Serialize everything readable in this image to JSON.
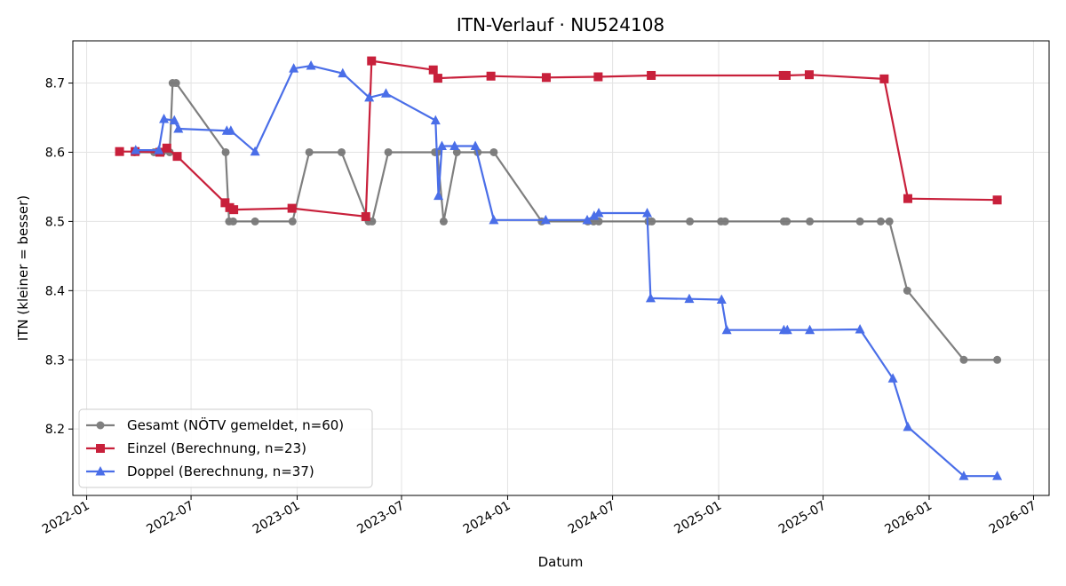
{
  "chart_data": {
    "type": "line",
    "title": "ITN-Verlauf · NU524108",
    "xlabel": "Datum",
    "ylabel": "ITN  (kleiner = besser)",
    "xlim": [
      "2021-12-08",
      "2026-07-28"
    ],
    "ylim": [
      8.104,
      8.761
    ],
    "x_ticks": [
      "2022-01-01",
      "2022-07-01",
      "2023-01-01",
      "2023-07-01",
      "2024-01-01",
      "2024-07-01",
      "2025-01-01",
      "2025-07-01",
      "2026-01-01",
      "2026-07-01"
    ],
    "x_tick_labels": [
      "2022-01",
      "2022-07",
      "2023-01",
      "2023-07",
      "2024-01",
      "2024-07",
      "2025-01",
      "2025-07",
      "2026-01",
      "2026-07"
    ],
    "y_ticks": [
      8.2,
      8.3,
      8.4,
      8.5,
      8.6,
      8.7
    ],
    "y_tick_labels": [
      "8.2",
      "8.3",
      "8.4",
      "8.5",
      "8.6",
      "8.7"
    ],
    "grid": true,
    "legend_position": "lower-left",
    "series": [
      {
        "name": "Gesamt (NÖTV gemeldet, n=60)",
        "color": "#555555",
        "marker": "circle",
        "points": [
          [
            "2022-03-25",
            8.6
          ],
          [
            "2022-04-28",
            8.6
          ],
          [
            "2022-05-07",
            8.6
          ],
          [
            "2022-05-12",
            8.6
          ],
          [
            "2022-05-25",
            8.6
          ],
          [
            "2022-05-30",
            8.7
          ],
          [
            "2022-06-05",
            8.7
          ],
          [
            "2022-08-30",
            8.6
          ],
          [
            "2022-09-05",
            8.5
          ],
          [
            "2022-09-12",
            8.5
          ],
          [
            "2022-10-20",
            8.5
          ],
          [
            "2022-12-24",
            8.5
          ],
          [
            "2023-01-22",
            8.6
          ],
          [
            "2023-03-19",
            8.6
          ],
          [
            "2023-05-05",
            8.5
          ],
          [
            "2023-05-11",
            8.5
          ],
          [
            "2023-06-08",
            8.6
          ],
          [
            "2023-08-28",
            8.6
          ],
          [
            "2023-09-01",
            8.6
          ],
          [
            "2023-09-12",
            8.5
          ],
          [
            "2023-10-05",
            8.6
          ],
          [
            "2023-11-10",
            8.6
          ],
          [
            "2023-12-08",
            8.6
          ],
          [
            "2024-02-29",
            8.5
          ],
          [
            "2024-05-19",
            8.5
          ],
          [
            "2024-05-29",
            8.5
          ],
          [
            "2024-06-07",
            8.5
          ],
          [
            "2024-09-01",
            8.5
          ],
          [
            "2024-09-07",
            8.5
          ],
          [
            "2024-11-12",
            8.5
          ],
          [
            "2025-01-05",
            8.5
          ],
          [
            "2025-01-12",
            8.5
          ],
          [
            "2025-04-24",
            8.5
          ],
          [
            "2025-04-29",
            8.5
          ],
          [
            "2025-06-08",
            8.5
          ],
          [
            "2025-09-03",
            8.5
          ],
          [
            "2025-10-09",
            8.5
          ],
          [
            "2025-10-24",
            8.5
          ],
          [
            "2025-11-24",
            8.4
          ],
          [
            "2026-03-02",
            8.3
          ],
          [
            "2026-04-29",
            8.3
          ]
        ]
      },
      {
        "name": "Einzel (Berechnung, n=23)",
        "color": "#c8203b",
        "marker": "square",
        "points": [
          [
            "2022-02-27",
            8.601
          ],
          [
            "2022-03-26",
            8.601
          ],
          [
            "2022-05-08",
            8.6
          ],
          [
            "2022-05-20",
            8.606
          ],
          [
            "2022-06-07",
            8.594
          ],
          [
            "2022-08-29",
            8.527
          ],
          [
            "2022-09-06",
            8.52
          ],
          [
            "2022-09-13",
            8.517
          ],
          [
            "2022-12-23",
            8.519
          ],
          [
            "2023-04-30",
            8.507
          ],
          [
            "2023-05-10",
            8.732
          ],
          [
            "2023-08-25",
            8.719
          ],
          [
            "2023-09-02",
            8.707
          ],
          [
            "2023-12-03",
            8.71
          ],
          [
            "2024-03-08",
            8.708
          ],
          [
            "2024-06-06",
            8.709
          ],
          [
            "2024-09-06",
            8.711
          ],
          [
            "2025-04-23",
            8.711
          ],
          [
            "2025-04-28",
            8.711
          ],
          [
            "2025-06-07",
            8.712
          ],
          [
            "2025-10-15",
            8.706
          ],
          [
            "2025-11-25",
            8.533
          ],
          [
            "2026-04-29",
            8.531
          ]
        ]
      },
      {
        "name": "Doppel (Berechnung, n=37)",
        "color": "#4a6ee8",
        "marker": "triangle",
        "points": [
          [
            "2022-03-27",
            8.603
          ],
          [
            "2022-05-06",
            8.603
          ],
          [
            "2022-05-15",
            8.648
          ],
          [
            "2022-06-02",
            8.646
          ],
          [
            "2022-06-09",
            8.634
          ],
          [
            "2022-09-01",
            8.631
          ],
          [
            "2022-09-08",
            8.631
          ],
          [
            "2022-10-20",
            8.601
          ],
          [
            "2022-12-26",
            8.721
          ],
          [
            "2023-01-25",
            8.725
          ],
          [
            "2023-03-21",
            8.714
          ],
          [
            "2023-05-06",
            8.679
          ],
          [
            "2023-06-04",
            8.685
          ],
          [
            "2023-08-29",
            8.646
          ],
          [
            "2023-09-03",
            8.537
          ],
          [
            "2023-09-09",
            8.609
          ],
          [
            "2023-10-01",
            8.609
          ],
          [
            "2023-11-06",
            8.609
          ],
          [
            "2023-12-08",
            8.502
          ],
          [
            "2024-03-07",
            8.502
          ],
          [
            "2024-05-18",
            8.502
          ],
          [
            "2024-05-30",
            8.508
          ],
          [
            "2024-06-07",
            8.512
          ],
          [
            "2024-08-30",
            8.512
          ],
          [
            "2024-09-05",
            8.389
          ],
          [
            "2024-11-11",
            8.388
          ],
          [
            "2025-01-06",
            8.387
          ],
          [
            "2025-01-15",
            8.343
          ],
          [
            "2025-04-24",
            8.343
          ],
          [
            "2025-04-30",
            8.343
          ],
          [
            "2025-06-08",
            8.343
          ],
          [
            "2025-09-03",
            8.344
          ],
          [
            "2025-10-30",
            8.273
          ],
          [
            "2025-11-25",
            8.203
          ],
          [
            "2026-03-02",
            8.132
          ],
          [
            "2026-04-29",
            8.132
          ]
        ]
      }
    ]
  }
}
